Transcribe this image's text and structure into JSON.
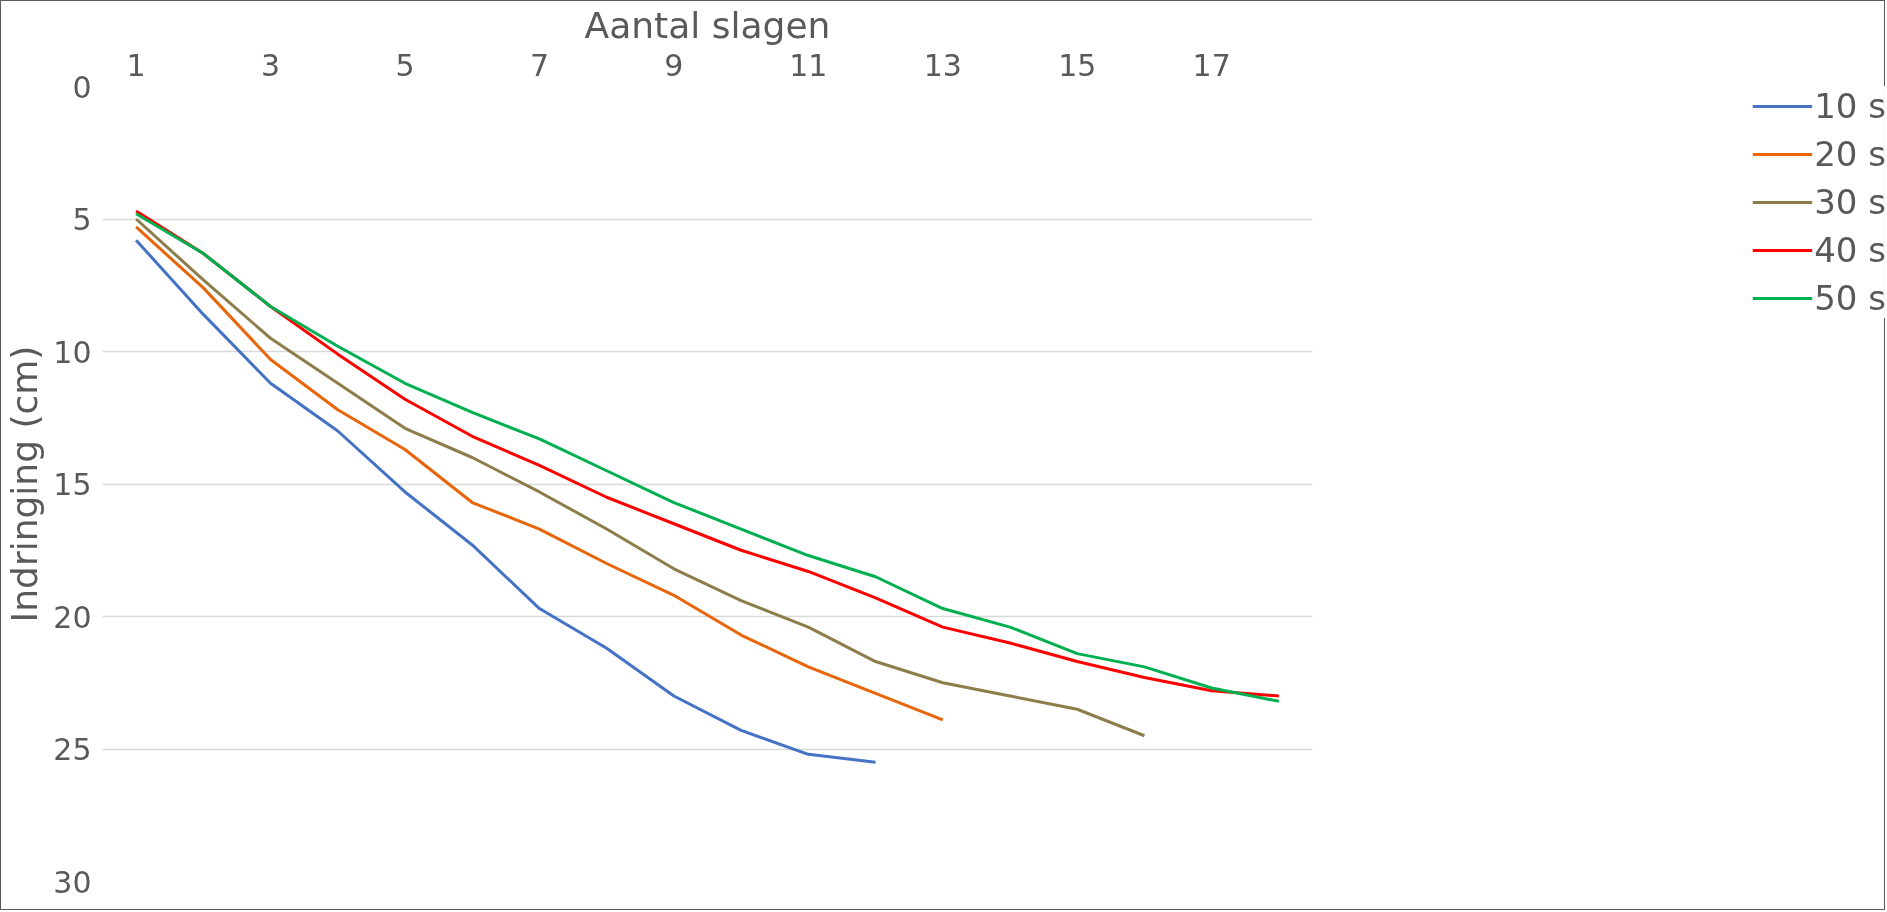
{
  "chart_data": {
    "type": "line",
    "xlabel": "Aantal slagen",
    "ylabel": "Indringing (cm)",
    "x": [
      1,
      2,
      3,
      4,
      5,
      6,
      7,
      8,
      9,
      10,
      11,
      12,
      13,
      14,
      15,
      16,
      17,
      18
    ],
    "xlim": [
      0.5,
      18.5
    ],
    "xticks": [
      1,
      3,
      5,
      7,
      9,
      11,
      13,
      15,
      17
    ],
    "ylim": [
      30,
      0
    ],
    "yticks": [
      0,
      5,
      10,
      15,
      20,
      25,
      30
    ],
    "grid": "y",
    "legend": "right",
    "marker": "none",
    "line_style": "solid",
    "series": [
      {
        "name": "10 s",
        "color": "#4472c4",
        "values": [
          5.8,
          8.6,
          11.2,
          13.0,
          15.3,
          17.3,
          19.7,
          21.2,
          23.0,
          24.3,
          25.2,
          25.5,
          null,
          null,
          null,
          null,
          null,
          null
        ]
      },
      {
        "name": "20 s",
        "color": "#e8650a",
        "values": [
          5.3,
          7.6,
          10.3,
          12.2,
          13.7,
          15.7,
          16.7,
          18.0,
          19.2,
          20.7,
          21.9,
          22.9,
          23.9,
          null,
          null,
          null,
          null,
          null
        ]
      },
      {
        "name": "30 s",
        "color": "#8c7e4a",
        "values": [
          5.0,
          7.3,
          9.5,
          11.2,
          12.9,
          14.0,
          15.3,
          16.7,
          18.2,
          19.4,
          20.4,
          21.7,
          22.5,
          23.0,
          23.5,
          24.5,
          null,
          null
        ]
      },
      {
        "name": "40 s",
        "color": "#ff0000",
        "values": [
          4.7,
          6.3,
          8.3,
          10.1,
          11.8,
          13.2,
          14.3,
          15.5,
          16.5,
          17.5,
          18.3,
          19.3,
          20.4,
          21.0,
          21.7,
          22.3,
          22.8,
          23.0
        ]
      },
      {
        "name": "50 s",
        "color": "#00b050",
        "values": [
          4.8,
          6.3,
          8.3,
          9.8,
          11.2,
          12.3,
          13.3,
          14.5,
          15.7,
          16.7,
          17.7,
          18.5,
          19.7,
          20.4,
          21.4,
          21.9,
          22.7,
          23.2
        ]
      }
    ]
  }
}
